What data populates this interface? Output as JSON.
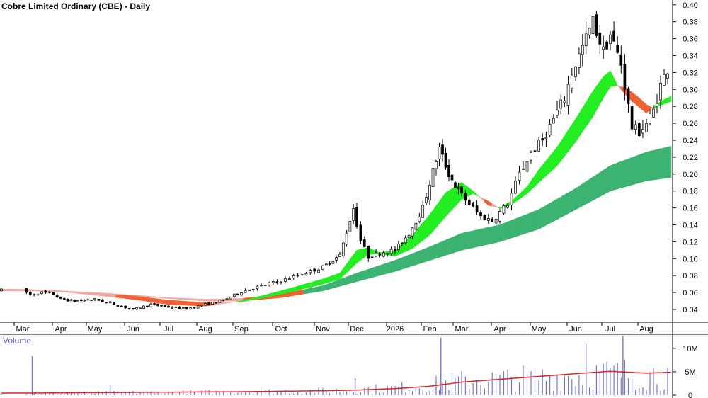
{
  "title": "Cobre Limited Ordinary (CBE) - Daily",
  "volume_label": "Volume",
  "colors": {
    "bullish_ribbon": "#22ee22",
    "bearish_ribbon": "#f06030",
    "neutral_bear_ribbon": "#f2a8a0",
    "long_ribbon": "#3cb371",
    "volume_bars": "#7777cc",
    "volume_ma": "#dd2222",
    "candles": "#000000"
  },
  "chart_data": [
    {
      "type": "candlestick",
      "title": "Cobre Limited Ordinary (CBE) - Daily",
      "x_tick_labels": [
        "Mar",
        "Apr",
        "May",
        "Jun",
        "Jul",
        "Aug",
        "Sep",
        "Oct",
        "Nov",
        "Dec",
        "2026",
        "Feb",
        "Mar",
        "Apr",
        "May",
        "Jun",
        "Jul",
        "Aug"
      ],
      "y_ticks": [
        0.04,
        0.06,
        0.08,
        0.1,
        0.12,
        0.14,
        0.16,
        0.18,
        0.2,
        0.22,
        0.24,
        0.26,
        0.28,
        0.3,
        0.32,
        0.34,
        0.36,
        0.38,
        0.4
      ],
      "y_tick_labels": [
        "0.04",
        "0.06",
        "0.08",
        "0.10",
        "0.12",
        "0.14",
        "0.16",
        "0.18",
        "0.20",
        "0.22",
        "0.24",
        "0.26",
        "0.28",
        "0.30",
        "0.32",
        "0.34",
        "0.36",
        "0.38",
        "0.40"
      ],
      "ylim": [
        0.02,
        0.405
      ],
      "close_series": {
        "month_index": [
          0,
          0.2,
          0.5,
          0.8,
          1.0,
          1.4,
          2.0,
          2.5,
          3.0,
          3.5,
          4.0,
          4.5,
          5.0,
          5.5,
          6.0,
          6.5,
          7.0,
          7.5,
          8.0,
          8.5,
          8.9,
          9.1,
          9.3,
          9.7,
          10.0,
          10.4,
          10.8,
          11.0,
          11.3,
          11.6,
          11.9,
          12.2,
          12.5,
          12.8,
          13.2,
          13.5,
          13.8,
          14.1,
          14.4,
          14.7,
          14.9,
          15.2,
          15.5,
          15.8,
          16.0,
          16.3,
          16.6,
          16.8,
          17.0,
          17.2
        ],
        "close": [
          0.063,
          0.057,
          0.06,
          0.058,
          0.052,
          0.05,
          0.052,
          0.046,
          0.04,
          0.046,
          0.043,
          0.041,
          0.046,
          0.051,
          0.061,
          0.068,
          0.074,
          0.082,
          0.09,
          0.104,
          0.16,
          0.122,
          0.102,
          0.108,
          0.11,
          0.13,
          0.16,
          0.19,
          0.23,
          0.2,
          0.18,
          0.165,
          0.15,
          0.145,
          0.165,
          0.2,
          0.225,
          0.24,
          0.265,
          0.29,
          0.32,
          0.35,
          0.38,
          0.345,
          0.365,
          0.33,
          0.255,
          0.25,
          0.26,
          0.275
        ],
        "last": [
          17.4,
          0.305
        ],
        "final": [
          17.6,
          0.325
        ]
      },
      "ribbons": {
        "short": {
          "x": [
            0,
            1,
            2,
            3,
            4,
            5,
            6,
            7,
            8,
            8.5,
            9,
            9.3,
            9.6,
            10,
            10.5,
            11,
            11.5,
            12,
            12.3,
            12.7,
            13,
            13.3,
            13.7,
            14,
            14.5,
            15,
            15.5,
            15.8,
            16,
            16.2,
            16.5,
            16.8,
            17.0,
            17.2,
            17.5,
            17.7
          ],
          "fast": [
            0.063,
            0.061,
            0.057,
            0.052,
            0.046,
            0.044,
            0.05,
            0.062,
            0.076,
            0.083,
            0.11,
            0.113,
            0.107,
            0.11,
            0.128,
            0.152,
            0.178,
            0.19,
            0.18,
            0.163,
            0.16,
            0.168,
            0.185,
            0.205,
            0.232,
            0.265,
            0.298,
            0.315,
            0.322,
            0.305,
            0.29,
            0.279,
            0.272,
            0.28,
            0.288,
            0.292
          ],
          "slow": [
            0.064,
            0.062,
            0.059,
            0.056,
            0.051,
            0.048,
            0.049,
            0.058,
            0.07,
            0.076,
            0.095,
            0.105,
            0.106,
            0.103,
            0.112,
            0.128,
            0.15,
            0.17,
            0.177,
            0.168,
            0.159,
            0.164,
            0.177,
            0.19,
            0.21,
            0.238,
            0.268,
            0.29,
            0.303,
            0.305,
            0.3,
            0.29,
            0.282,
            0.278,
            0.283,
            0.286
          ]
        },
        "long": {
          "x": [
            0,
            1,
            2,
            3,
            4,
            5,
            6,
            7,
            8,
            9,
            10,
            11,
            12,
            13,
            14,
            15,
            16,
            17,
            17.7
          ],
          "fast": [
            0.063,
            0.062,
            0.06,
            0.057,
            0.054,
            0.052,
            0.053,
            0.058,
            0.068,
            0.083,
            0.098,
            0.114,
            0.13,
            0.14,
            0.158,
            0.183,
            0.21,
            0.226,
            0.233
          ],
          "slow": [
            0.062,
            0.061,
            0.059,
            0.056,
            0.053,
            0.05,
            0.05,
            0.054,
            0.062,
            0.073,
            0.085,
            0.098,
            0.11,
            0.12,
            0.135,
            0.158,
            0.18,
            0.192,
            0.196
          ]
        }
      },
      "grid": false
    },
    {
      "type": "bar",
      "title": "Volume",
      "y_ticks": [
        0,
        5000000,
        10000000
      ],
      "y_tick_labels": [
        "0",
        "5M",
        "10M"
      ],
      "ylim": [
        0,
        13000000
      ],
      "volume_profile_millions": {
        "x": [
          0,
          1,
          2,
          3,
          4,
          5,
          6,
          7,
          8,
          9,
          10,
          11,
          12,
          13,
          14,
          15,
          16,
          17,
          17.7
        ],
        "avg": [
          0.4,
          0.5,
          0.5,
          0.6,
          0.6,
          0.7,
          0.8,
          0.9,
          1.0,
          1.3,
          1.6,
          2.3,
          3.2,
          3.6,
          4.0,
          4.5,
          4.8,
          4.7,
          4.7
        ]
      },
      "spikes_millions": [
        [
          0.25,
          8.4
        ],
        [
          2.4,
          2.1
        ],
        [
          8.95,
          3.6
        ],
        [
          11.35,
          12.3
        ],
        [
          15.3,
          11.0
        ],
        [
          16.35,
          12.6
        ]
      ],
      "moving_average": {
        "x": [
          0,
          1,
          2,
          3,
          4,
          5,
          6,
          7,
          8,
          9,
          10,
          11,
          12,
          13,
          14,
          15,
          16,
          17,
          17.7
        ],
        "values": [
          0.45,
          0.5,
          0.55,
          0.6,
          0.65,
          0.7,
          0.75,
          0.85,
          0.95,
          1.1,
          1.4,
          1.9,
          2.8,
          3.4,
          4.0,
          4.6,
          5.1,
          4.7,
          4.9
        ]
      }
    }
  ]
}
